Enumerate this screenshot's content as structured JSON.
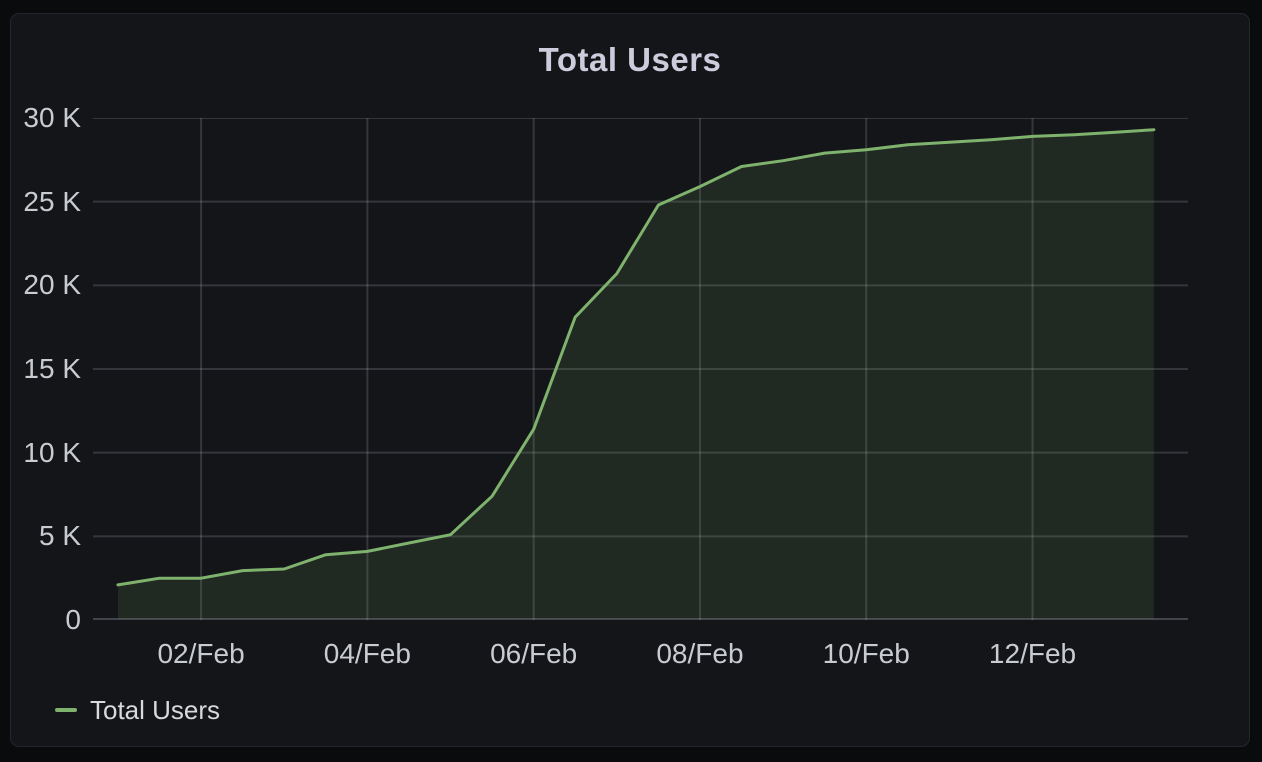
{
  "panel": {
    "title": "Total Users"
  },
  "legend": {
    "items": [
      {
        "label": "Total Users",
        "color": "#7EB26D"
      }
    ]
  },
  "colors": {
    "page_bg": "#0a0b0d",
    "panel_bg": "#141519",
    "panel_border": "#25262c",
    "title_text": "#ccccdc",
    "tick_text": "#c8cbd0",
    "legend_text": "#d8d9da",
    "grid": "rgba(204,204,220,0.18)",
    "zero_line": "rgba(204,204,220,0.26)",
    "series_line": "#7EB26D",
    "series_fill": "rgba(126,178,109,0.13)"
  },
  "chart_data": {
    "type": "area",
    "title": "Total Users",
    "xlabel": "",
    "ylabel": "",
    "grid": true,
    "legend_position": "bottom-left",
    "y_domain": [
      0,
      30000
    ],
    "x_domain_days": [
      -0.3,
      12.87
    ],
    "y_ticks": [
      {
        "v": 0,
        "label": "0"
      },
      {
        "v": 5000,
        "label": "5 K"
      },
      {
        "v": 10000,
        "label": "10 K"
      },
      {
        "v": 15000,
        "label": "15 K"
      },
      {
        "v": 20000,
        "label": "20 K"
      },
      {
        "v": 25000,
        "label": "25 K"
      },
      {
        "v": 30000,
        "label": "30 K"
      }
    ],
    "x_ticks": [
      {
        "t": 1,
        "label": "02/Feb"
      },
      {
        "t": 3,
        "label": "04/Feb"
      },
      {
        "t": 5,
        "label": "06/Feb"
      },
      {
        "t": 7,
        "label": "08/Feb"
      },
      {
        "t": 9,
        "label": "10/Feb"
      },
      {
        "t": 11,
        "label": "12/Feb"
      }
    ],
    "series": [
      {
        "name": "Total Users",
        "color": "#7EB26D",
        "points": [
          {
            "t": 0.0,
            "v": 2100
          },
          {
            "t": 0.5,
            "v": 2500
          },
          {
            "t": 1.0,
            "v": 2500
          },
          {
            "t": 1.5,
            "v": 2950
          },
          {
            "t": 2.0,
            "v": 3050
          },
          {
            "t": 2.5,
            "v": 3900
          },
          {
            "t": 3.0,
            "v": 4100
          },
          {
            "t": 3.5,
            "v": 4600
          },
          {
            "t": 4.0,
            "v": 5100
          },
          {
            "t": 4.5,
            "v": 7400
          },
          {
            "t": 5.0,
            "v": 11400
          },
          {
            "t": 5.5,
            "v": 18100
          },
          {
            "t": 6.0,
            "v": 20700
          },
          {
            "t": 6.5,
            "v": 24800
          },
          {
            "t": 7.0,
            "v": 25900
          },
          {
            "t": 7.5,
            "v": 27100
          },
          {
            "t": 8.0,
            "v": 27450
          },
          {
            "t": 8.5,
            "v": 27900
          },
          {
            "t": 9.0,
            "v": 28100
          },
          {
            "t": 9.5,
            "v": 28400
          },
          {
            "t": 10.0,
            "v": 28550
          },
          {
            "t": 10.5,
            "v": 28700
          },
          {
            "t": 11.0,
            "v": 28900
          },
          {
            "t": 11.5,
            "v": 29000
          },
          {
            "t": 12.0,
            "v": 29150
          },
          {
            "t": 12.46,
            "v": 29300
          }
        ]
      }
    ]
  }
}
